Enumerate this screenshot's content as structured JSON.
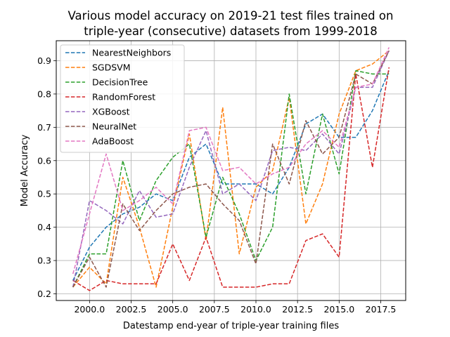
{
  "chart_data": {
    "type": "line",
    "title_lines": [
      "Various model accuracy on 2019-21 test files trained on",
      "triple-year (consecutive) datasets from 1999-2018"
    ],
    "xlabel": "Datestamp end-year of triple-year training files",
    "ylabel": "Model Accuracy",
    "xlim": [
      1998.0,
      2019.0
    ],
    "ylim": [
      0.18,
      0.96
    ],
    "x_ticks": [
      2000.0,
      2002.5,
      2005.0,
      2007.5,
      2010.0,
      2012.5,
      2015.0,
      2017.5
    ],
    "x_tick_labels": [
      "2000.0",
      "2002.5",
      "2005.0",
      "2007.5",
      "2010.0",
      "2012.5",
      "2015.0",
      "2017.5"
    ],
    "y_ticks": [
      0.2,
      0.3,
      0.4,
      0.5,
      0.6,
      0.7,
      0.8,
      0.9
    ],
    "y_tick_labels": [
      "0.2",
      "0.3",
      "0.4",
      "0.5",
      "0.6",
      "0.7",
      "0.8",
      "0.9"
    ],
    "grid": true,
    "legend_position": "upper-left",
    "line_style": "dashed",
    "x": [
      1999,
      2000,
      2001,
      2002,
      2003,
      2004,
      2005,
      2006,
      2007,
      2008,
      2009,
      2010,
      2011,
      2012,
      2013,
      2014,
      2015,
      2016,
      2017,
      2018
    ],
    "series": [
      {
        "name": "NearestNeighbors",
        "color": "#1f77b4",
        "values": [
          0.24,
          0.34,
          0.4,
          0.44,
          0.46,
          0.5,
          0.48,
          0.61,
          0.65,
          0.53,
          0.53,
          0.53,
          0.5,
          0.58,
          0.71,
          0.74,
          0.67,
          0.67,
          0.75,
          0.87
        ]
      },
      {
        "name": "SGDSVM",
        "color": "#ff7f0e",
        "values": [
          0.22,
          0.28,
          0.23,
          0.55,
          0.4,
          0.22,
          0.46,
          0.68,
          0.36,
          0.76,
          0.32,
          0.52,
          0.57,
          0.79,
          0.41,
          0.53,
          0.74,
          0.87,
          0.89,
          0.93
        ]
      },
      {
        "name": "DecisionTree",
        "color": "#2ca02c",
        "values": [
          0.22,
          0.32,
          0.32,
          0.6,
          0.42,
          0.54,
          0.61,
          0.65,
          0.37,
          0.55,
          0.44,
          0.3,
          0.4,
          0.8,
          0.5,
          0.74,
          0.56,
          0.87,
          0.86,
          0.86
        ]
      },
      {
        "name": "RandomForest",
        "color": "#d62728",
        "values": [
          0.24,
          0.21,
          0.24,
          0.23,
          0.23,
          0.23,
          0.35,
          0.24,
          0.37,
          0.22,
          0.22,
          0.22,
          0.23,
          0.23,
          0.36,
          0.38,
          0.31,
          0.86,
          0.58,
          0.88
        ]
      },
      {
        "name": "XGBoost",
        "color": "#9467bd",
        "values": [
          0.22,
          0.48,
          0.45,
          0.41,
          0.51,
          0.43,
          0.44,
          0.58,
          0.69,
          0.5,
          0.53,
          0.48,
          0.63,
          0.64,
          0.63,
          0.68,
          0.62,
          0.82,
          0.82,
          0.93
        ]
      },
      {
        "name": "NeuralNet",
        "color": "#8c564b",
        "values": [
          0.22,
          0.31,
          0.22,
          0.47,
          0.39,
          0.45,
          0.5,
          0.52,
          0.53,
          0.47,
          0.42,
          0.29,
          0.65,
          0.53,
          0.72,
          0.62,
          0.67,
          0.86,
          0.83,
          0.93
        ]
      },
      {
        "name": "AdaBoost",
        "color": "#e377c2",
        "values": [
          0.26,
          0.44,
          0.62,
          0.45,
          0.48,
          0.52,
          0.47,
          0.69,
          0.7,
          0.57,
          0.58,
          0.53,
          0.56,
          0.58,
          0.65,
          0.69,
          0.64,
          0.82,
          0.83,
          0.94
        ]
      }
    ]
  }
}
